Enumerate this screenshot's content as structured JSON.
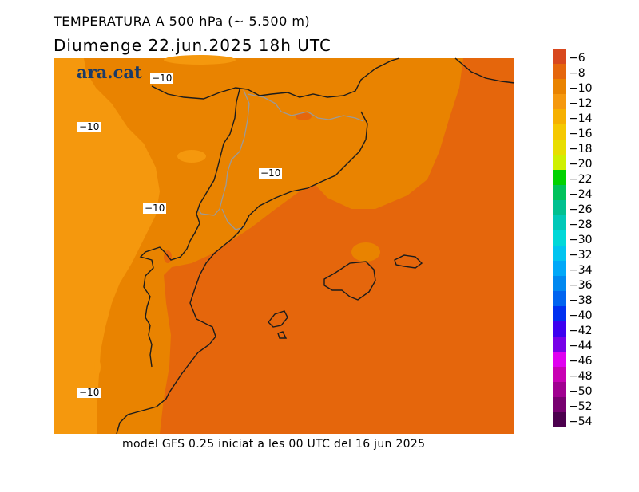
{
  "header": {
    "title": "TEMPERATURA A 500 hPa (~ 5.500 m)",
    "subtitle": "Diumenge  22.jun.2025 18h UTC"
  },
  "footer": {
    "caption": "model GFS 0.25 iniciat a les 00 UTC del 16 jun 2025"
  },
  "logo": {
    "text": "ara.cat"
  },
  "map": {
    "contour_labels": [
      "−10",
      "−10",
      "−10",
      "−10",
      "−10"
    ],
    "colors": {
      "minus8": "#E5660C",
      "minus10": "#E98300",
      "minus12": "#F5980D",
      "coast": "#1b1b1b",
      "border": "#9a9a9a"
    }
  },
  "legend": {
    "levels": [
      {
        "label": "−6",
        "color": "#D8481E"
      },
      {
        "label": "−8",
        "color": "#E5660C"
      },
      {
        "label": "−10",
        "color": "#E98300"
      },
      {
        "label": "−12",
        "color": "#F5980D"
      },
      {
        "label": "−14",
        "color": "#F6B000"
      },
      {
        "label": "−16",
        "color": "#F5C800"
      },
      {
        "label": "−18",
        "color": "#E8DE00"
      },
      {
        "label": "−20",
        "color": "#CFF000"
      },
      {
        "label": "−22",
        "color": "#00D200"
      },
      {
        "label": "−24",
        "color": "#00C25A"
      },
      {
        "label": "−26",
        "color": "#00C090"
      },
      {
        "label": "−28",
        "color": "#00C8B8"
      },
      {
        "label": "−30",
        "color": "#00D8D8"
      },
      {
        "label": "−32",
        "color": "#00C4F0"
      },
      {
        "label": "−34",
        "color": "#00A8F8"
      },
      {
        "label": "−36",
        "color": "#0088F0"
      },
      {
        "label": "−38",
        "color": "#0064F0"
      },
      {
        "label": "−40",
        "color": "#0030F0"
      },
      {
        "label": "−42",
        "color": "#3C00F0"
      },
      {
        "label": "−44",
        "color": "#7800E8"
      },
      {
        "label": "−46",
        "color": "#E000F0"
      },
      {
        "label": "−48",
        "color": "#C800B4"
      },
      {
        "label": "−50",
        "color": "#A00090"
      },
      {
        "label": "−52",
        "color": "#780070"
      },
      {
        "label": "−54",
        "color": "#4C004E"
      }
    ]
  }
}
